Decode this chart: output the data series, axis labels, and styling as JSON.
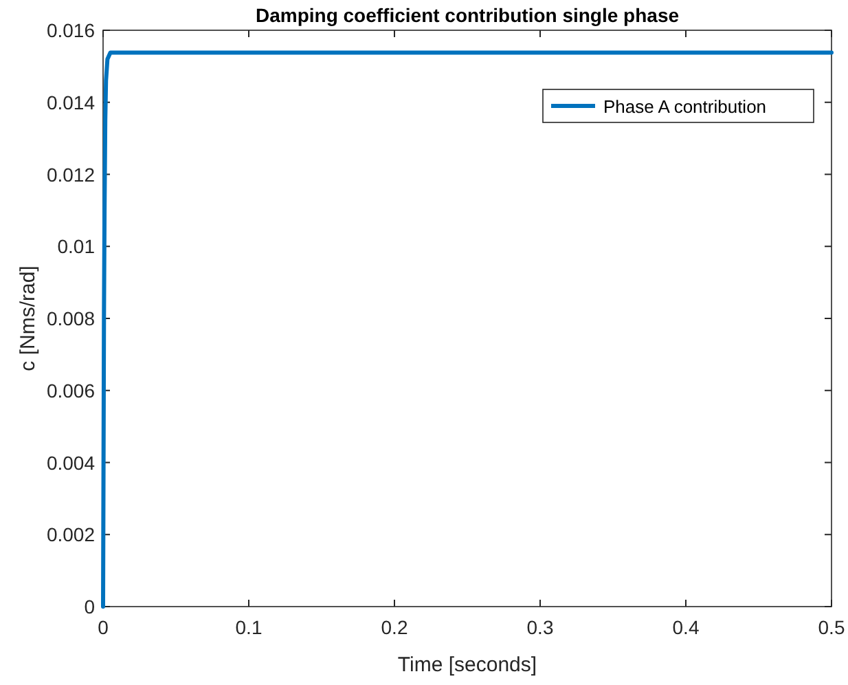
{
  "chart_data": {
    "type": "line",
    "title": "Damping coefficient contribution single phase",
    "xlabel": "Time [seconds]",
    "ylabel": "c [Nms/rad]",
    "series": [
      {
        "name": "Phase A contribution",
        "color": "#0072bd",
        "x": [
          0,
          0.0003,
          0.0006,
          0.001,
          0.0015,
          0.002,
          0.003,
          0.005,
          0.5
        ],
        "values": [
          0,
          0.004,
          0.008,
          0.011,
          0.0135,
          0.0146,
          0.0152,
          0.01538,
          0.01538
        ]
      }
    ],
    "xlim": [
      0,
      0.5
    ],
    "xticks": [
      0,
      0.1,
      0.2,
      0.3,
      0.4,
      0.5
    ],
    "ylim": [
      0,
      0.016
    ],
    "yticks": [
      0,
      0.002,
      0.004,
      0.006,
      0.008,
      0.01,
      0.012,
      0.014,
      0.016
    ],
    "grid": false,
    "legend": "top right",
    "line_style": "solid"
  }
}
